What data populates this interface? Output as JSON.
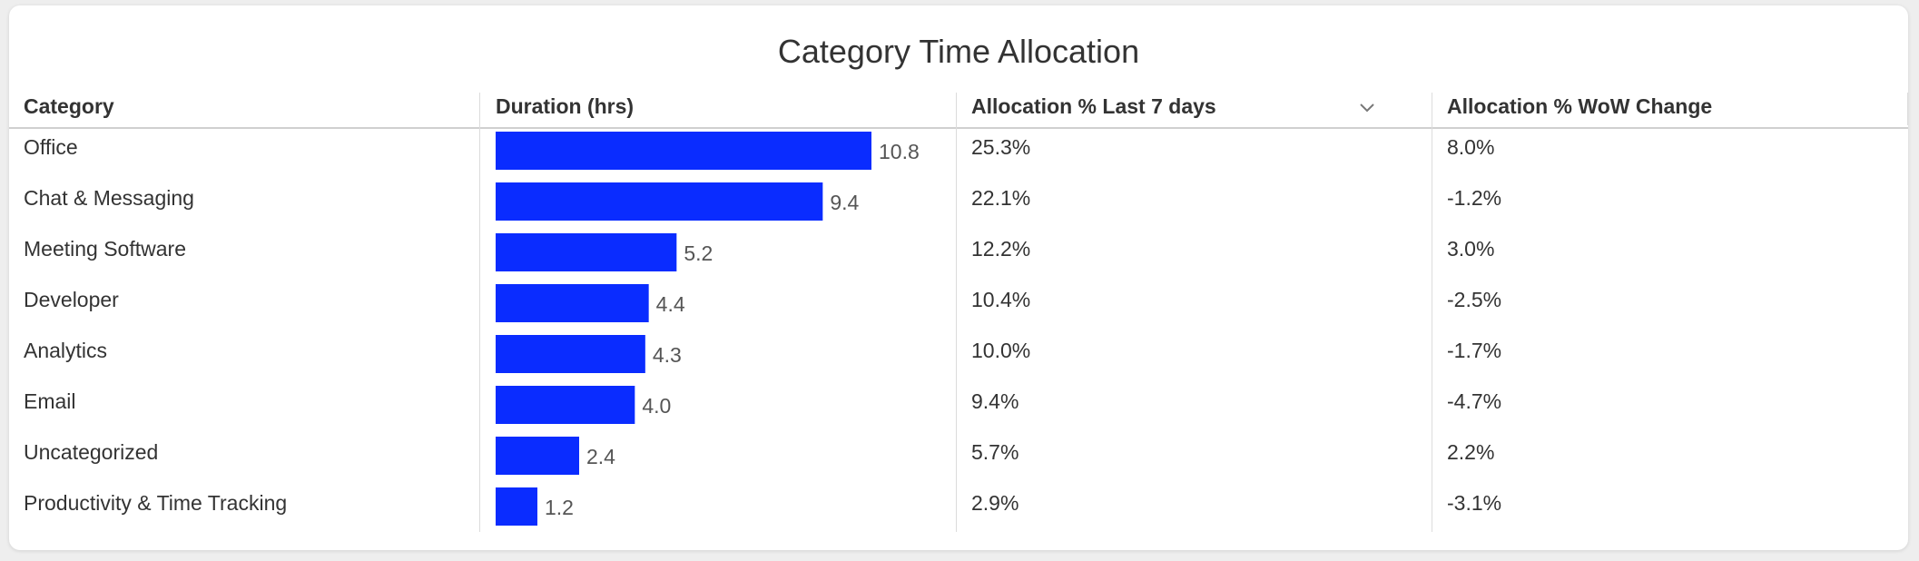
{
  "chart_data": {
    "type": "table",
    "title": "Category Time Allocation",
    "columns": [
      "Category",
      "Duration (hrs)",
      "Allocation % Last 7 days",
      "Allocation % WoW Change"
    ],
    "sort_column": "Allocation % Last 7 days",
    "sort_direction": "descending",
    "bar_color": "#0a2cff",
    "bar_max": 10.8,
    "rows": [
      {
        "category": "Office",
        "duration": 10.8,
        "duration_label": "10.8",
        "allocation": "25.3%",
        "wow": "8.0%"
      },
      {
        "category": "Chat & Messaging",
        "duration": 9.4,
        "duration_label": "9.4",
        "allocation": "22.1%",
        "wow": "-1.2%"
      },
      {
        "category": "Meeting Software",
        "duration": 5.2,
        "duration_label": "5.2",
        "allocation": "12.2%",
        "wow": "3.0%"
      },
      {
        "category": "Developer",
        "duration": 4.4,
        "duration_label": "4.4",
        "allocation": "10.4%",
        "wow": "-2.5%"
      },
      {
        "category": "Analytics",
        "duration": 4.3,
        "duration_label": "4.3",
        "allocation": "10.0%",
        "wow": "-1.7%"
      },
      {
        "category": "Email",
        "duration": 4.0,
        "duration_label": "4.0",
        "allocation": "9.4%",
        "wow": "-4.7%"
      },
      {
        "category": "Uncategorized",
        "duration": 2.4,
        "duration_label": "2.4",
        "allocation": "5.7%",
        "wow": "2.2%"
      },
      {
        "category": "Productivity & Time Tracking",
        "duration": 1.2,
        "duration_label": "1.2",
        "allocation": "2.9%",
        "wow": "-3.1%"
      }
    ]
  },
  "icons": {
    "sort": "chevron-down-icon"
  }
}
